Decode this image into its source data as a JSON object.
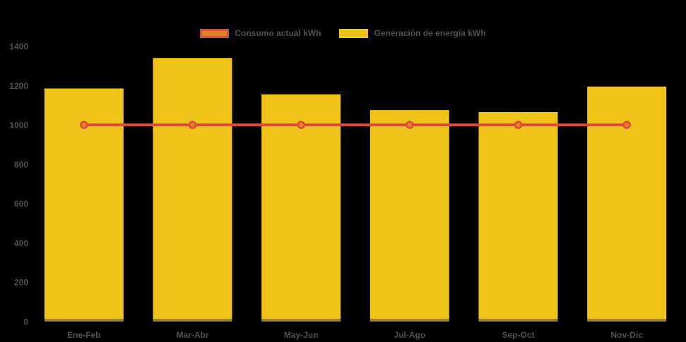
{
  "chart_data": {
    "type": "bar",
    "categories": [
      "Ene-Feb",
      "Mar-Abr",
      "May-Jun",
      "Jul-Ago",
      "Sep-Oct",
      "Nov-Dic"
    ],
    "series": [
      {
        "name": "Consumo actual kWh",
        "type": "line",
        "values": [
          1000,
          1000,
          1000,
          1000,
          1000,
          1000
        ],
        "line_color": "#DF4A38",
        "marker_fill": "#E6802D"
      },
      {
        "name": "Generación de energía kWh",
        "type": "bar",
        "values": [
          1185,
          1340,
          1155,
          1075,
          1065,
          1195
        ],
        "bar_color": "#EFC319"
      }
    ],
    "ylim": [
      0,
      1400
    ],
    "yticks": [
      0,
      200,
      400,
      600,
      800,
      1000,
      1200,
      1400
    ],
    "legend_position": "top",
    "grid": false,
    "background_color": "#000000",
    "text_color": "#4F4F4F",
    "axis_overlay_color": "rgba(0,0,0,0.32)"
  }
}
